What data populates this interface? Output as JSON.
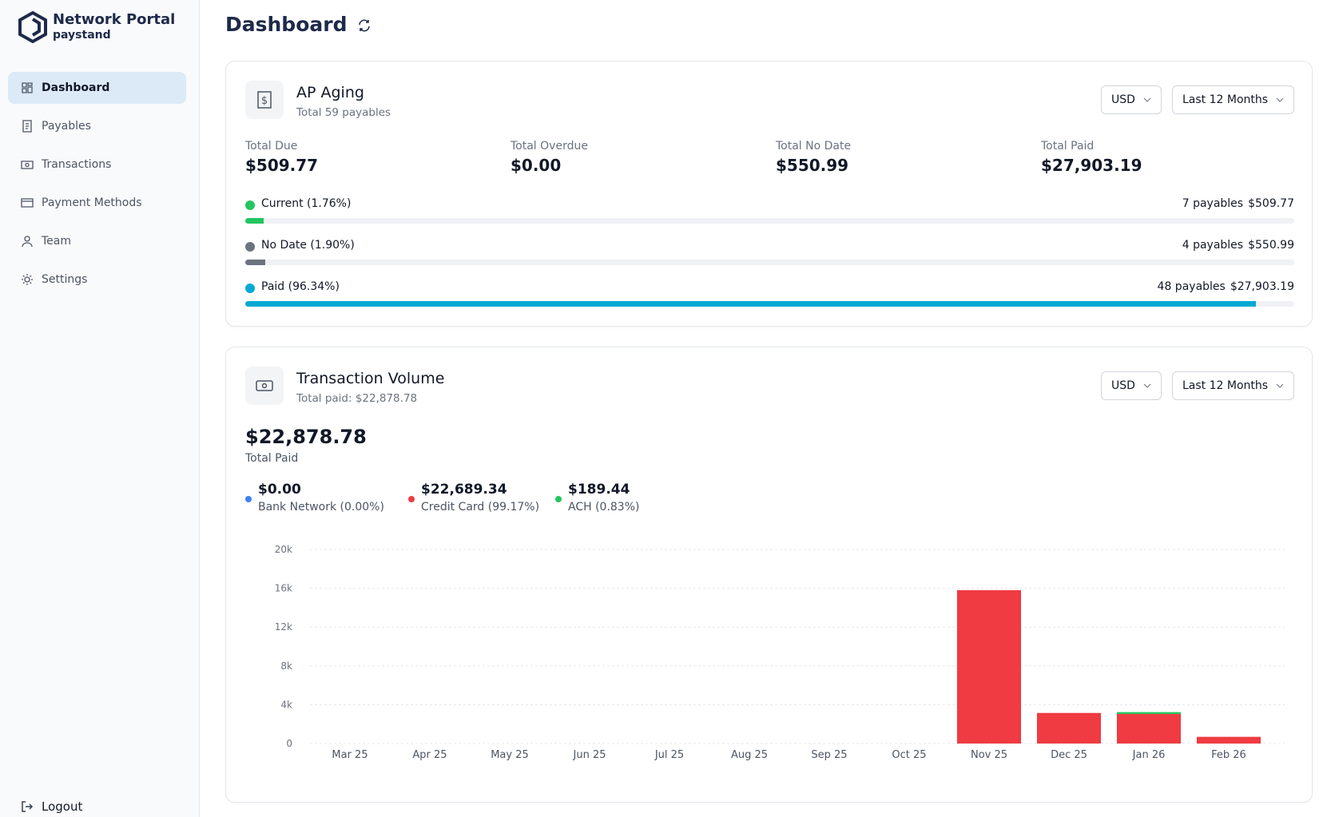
{
  "sidebar": {
    "brand": "Network Portal",
    "sub_brand": "paystand",
    "nav": [
      "Dashboard",
      "Payables",
      "Transactions",
      "Payment Methods",
      "Team",
      "Settings"
    ],
    "logout": "Logout"
  },
  "header": {
    "title": "Dashboard"
  },
  "ap_aging": {
    "title": "AP Aging",
    "subtitle": "Total 59 payables",
    "currency": "USD",
    "period": "Last 12 Months",
    "stats": [
      {
        "label": "Total Due",
        "value": "$509.77"
      },
      {
        "label": "Total Overdue",
        "value": "$0.00"
      },
      {
        "label": "Total No Date",
        "value": "$550.99"
      },
      {
        "label": "Total Paid",
        "value": "$27,903.19"
      }
    ],
    "rows": [
      {
        "label": "Current (1.76%)",
        "percent": 1.76,
        "count": "7 payables",
        "amount": "$509.77",
        "color": "#22c55e"
      },
      {
        "label": "No Date (1.90%)",
        "percent": 1.9,
        "count": "4 payables",
        "amount": "$550.99",
        "color": "#6b7280"
      },
      {
        "label": "Paid (96.34%)",
        "percent": 96.34,
        "count": "48 payables",
        "amount": "$27,903.19",
        "color": "#06a9d3"
      }
    ]
  },
  "transaction_volume": {
    "title": "Transaction Volume",
    "subtitle": "Total paid: $22,878.78",
    "currency": "USD",
    "period": "Last 12 Months",
    "total": "$22,878.78",
    "total_label": "Total Paid"
  },
  "chart_data": {
    "type": "bar",
    "stacked": true,
    "categories": [
      "Mar 25",
      "Apr 25",
      "May 25",
      "Jun 25",
      "Jul 25",
      "Aug 25",
      "Sep 25",
      "Oct 25",
      "Nov 25",
      "Dec 25",
      "Jan 26",
      "Feb 26"
    ],
    "series": [
      {
        "name": "Bank Network (0.00%)",
        "total": "$0.00",
        "color": "#3b82f6",
        "values": [
          0,
          0,
          0,
          0,
          0,
          0,
          0,
          0,
          0,
          0,
          0,
          0
        ]
      },
      {
        "name": "Credit Card (99.17%)",
        "total": "$22,689.34",
        "color": "#ef3b41",
        "values": [
          0,
          0,
          0,
          0,
          0,
          0,
          0,
          0,
          15800,
          3150,
          3050,
          690
        ]
      },
      {
        "name": "ACH (0.83%)",
        "total": "$189.44",
        "color": "#22c55e",
        "values": [
          0,
          0,
          0,
          0,
          0,
          0,
          0,
          0,
          0,
          0,
          189,
          0
        ]
      }
    ],
    "ylim": [
      0,
      20000
    ],
    "yticks": [
      0,
      {
        "value": 4000,
        "label": "4k"
      },
      {
        "value": 8000,
        "label": "8k"
      },
      {
        "value": 12000,
        "label": "12k"
      },
      {
        "value": 16000,
        "label": "16k"
      },
      {
        "value": 20000,
        "label": "20k"
      }
    ],
    "grid": true
  }
}
